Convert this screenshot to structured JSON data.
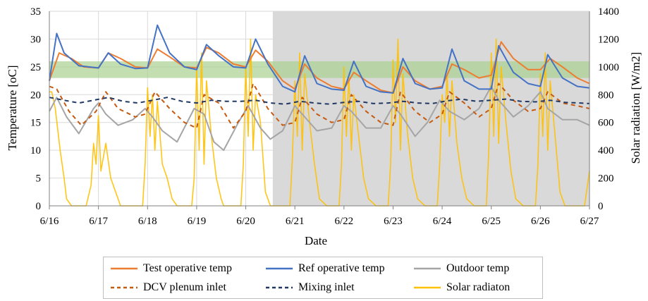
{
  "chart_data": {
    "type": "line",
    "xlabel": "Date",
    "ylabel_left": "Temperature [oC]",
    "ylabel_right": "Solar radiation [W/m2]",
    "x_ticks": [
      "6/16",
      "6/17",
      "6/18",
      "6/19",
      "6/20",
      "6/21",
      "6/22",
      "6/23",
      "6/24",
      "6/25",
      "6/26",
      "6/27"
    ],
    "ylim_left": [
      0,
      35
    ],
    "yticks_left": [
      0,
      5,
      10,
      15,
      20,
      25,
      30,
      35
    ],
    "ylim_right": [
      0,
      1400
    ],
    "yticks_right": [
      0,
      200,
      400,
      600,
      800,
      1000,
      1200,
      1400
    ],
    "grid": true,
    "shaded_period": {
      "start_day": 4.55,
      "end_day": 11,
      "color": "#d9d9d9"
    },
    "comfort_band": {
      "low": 23,
      "high": 26,
      "color": "#a9d08e"
    },
    "legend_placement": "bottom",
    "series": [
      {
        "name": "Test operative temp",
        "color": "#ed7d31",
        "style": "solid",
        "axis": "left",
        "x": [
          0,
          0.2,
          0.45,
          0.7,
          1.0,
          1.2,
          1.45,
          1.75,
          2.0,
          2.2,
          2.45,
          2.75,
          3.0,
          3.2,
          3.45,
          3.75,
          4.0,
          4.2,
          4.45,
          4.75,
          5.0,
          5.2,
          5.45,
          5.75,
          6.0,
          6.2,
          6.45,
          6.75,
          7.0,
          7.2,
          7.45,
          7.75,
          8.0,
          8.2,
          8.45,
          8.75,
          9.0,
          9.2,
          9.45,
          9.75,
          10.0,
          10.2,
          10.45,
          10.75,
          11.0
        ],
        "values": [
          22.5,
          27.5,
          26.5,
          25.0,
          24.8,
          27.5,
          26.5,
          25.0,
          24.8,
          28.2,
          26.8,
          25.0,
          24.8,
          28.5,
          27.5,
          25.5,
          25.0,
          28.0,
          26.0,
          22.5,
          21.0,
          25.5,
          23.0,
          21.5,
          21.0,
          24.0,
          22.5,
          20.8,
          20.3,
          25.0,
          22.5,
          21.0,
          21.5,
          25.5,
          24.5,
          23.0,
          23.5,
          29.5,
          26.5,
          24.5,
          24.5,
          26.5,
          25.0,
          23.0,
          22.0
        ]
      },
      {
        "name": "Ref operative temp",
        "color": "#4472c4",
        "style": "solid",
        "axis": "left",
        "x": [
          0,
          0.15,
          0.3,
          0.6,
          1.0,
          1.2,
          1.45,
          1.75,
          2.0,
          2.2,
          2.45,
          2.75,
          3.0,
          3.2,
          3.45,
          3.75,
          4.0,
          4.2,
          4.45,
          4.75,
          5.0,
          5.2,
          5.45,
          5.75,
          6.0,
          6.2,
          6.45,
          6.75,
          7.0,
          7.2,
          7.45,
          7.75,
          8.0,
          8.2,
          8.45,
          8.75,
          9.0,
          9.15,
          9.45,
          9.75,
          10.0,
          10.15,
          10.45,
          10.75,
          11.0
        ],
        "values": [
          22.5,
          31.0,
          27.5,
          25.2,
          24.8,
          27.5,
          25.5,
          24.7,
          24.8,
          32.5,
          27.5,
          25.0,
          24.5,
          29.0,
          27.0,
          25.0,
          24.8,
          30.0,
          25.5,
          21.5,
          20.5,
          27.0,
          22.0,
          21.0,
          20.8,
          26.0,
          21.5,
          20.5,
          20.3,
          26.5,
          22.0,
          21.0,
          21.2,
          28.2,
          22.5,
          21.0,
          21.0,
          28.8,
          24.0,
          22.0,
          21.5,
          27.2,
          23.0,
          21.5,
          21.2
        ]
      },
      {
        "name": "Outdoor temp",
        "color": "#a5a5a5",
        "style": "solid",
        "axis": "left",
        "x": [
          0,
          0.15,
          0.35,
          0.6,
          0.9,
          1.0,
          1.15,
          1.4,
          1.7,
          1.95,
          2.1,
          2.3,
          2.6,
          2.95,
          3.15,
          3.35,
          3.55,
          3.85,
          4.05,
          4.3,
          4.5,
          4.75,
          5.0,
          5.15,
          5.45,
          5.75,
          6.0,
          6.15,
          6.45,
          6.75,
          7.0,
          7.15,
          7.45,
          7.7,
          7.95,
          8.15,
          8.45,
          8.75,
          9.0,
          9.15,
          9.45,
          9.75,
          10.0,
          10.15,
          10.45,
          10.75,
          11.0
        ],
        "values": [
          17.0,
          19.5,
          16.0,
          13.0,
          17.5,
          18.5,
          16.5,
          14.5,
          15.5,
          17.5,
          16.0,
          13.5,
          11.5,
          17.5,
          16.5,
          11.5,
          10.0,
          15.0,
          18.0,
          14.0,
          12.0,
          13.5,
          18.0,
          16.5,
          13.5,
          14.0,
          18.0,
          17.0,
          14.0,
          14.0,
          18.0,
          16.5,
          12.5,
          15.0,
          19.0,
          17.0,
          15.5,
          17.5,
          21.5,
          19.0,
          16.0,
          18.0,
          20.5,
          17.5,
          15.5,
          15.5,
          14.5
        ]
      },
      {
        "name": "DCV plenum inlet",
        "color": "#c55a11",
        "style": "dashed",
        "axis": "left",
        "x": [
          0,
          0.15,
          0.4,
          0.65,
          0.95,
          1.15,
          1.4,
          1.75,
          1.95,
          2.15,
          2.45,
          2.75,
          3.0,
          3.15,
          3.45,
          3.75,
          4.0,
          4.15,
          4.45,
          4.75,
          5.0,
          5.15,
          5.45,
          5.75,
          6.0,
          6.15,
          6.45,
          6.75,
          7.0,
          7.15,
          7.45,
          7.75,
          8.0,
          8.15,
          8.45,
          8.75,
          9.0,
          9.15,
          9.45,
          9.75,
          10.0,
          10.15,
          10.45,
          10.75,
          11.0
        ],
        "values": [
          21.5,
          21.0,
          17.0,
          14.5,
          17.0,
          20.5,
          17.5,
          16.0,
          16.5,
          20.5,
          17.5,
          15.0,
          14.0,
          20.0,
          18.5,
          14.0,
          17.0,
          22.0,
          17.5,
          14.5,
          15.0,
          19.5,
          16.5,
          15.0,
          15.5,
          20.0,
          17.0,
          15.0,
          14.5,
          20.5,
          17.0,
          15.0,
          16.5,
          20.5,
          18.5,
          16.0,
          17.5,
          22.0,
          19.0,
          17.0,
          17.5,
          20.5,
          18.5,
          18.0,
          17.5
        ]
      },
      {
        "name": "Mixing inlet",
        "color": "#203864",
        "style": "dashed",
        "axis": "left",
        "x": [
          0,
          0.3,
          0.6,
          0.9,
          1.2,
          1.5,
          1.8,
          2.1,
          2.4,
          2.7,
          3.0,
          3.3,
          3.6,
          3.9,
          4.2,
          4.5,
          4.8,
          5.1,
          5.4,
          5.7,
          6.0,
          6.3,
          6.6,
          6.9,
          7.2,
          7.5,
          7.8,
          8.1,
          8.4,
          8.7,
          9.0,
          9.3,
          9.6,
          9.9,
          10.2,
          10.5,
          10.8,
          11.0
        ],
        "values": [
          19.5,
          19.0,
          18.5,
          19.0,
          19.5,
          18.8,
          18.5,
          19.0,
          19.5,
          18.8,
          18.5,
          19.0,
          18.8,
          18.8,
          19.0,
          18.5,
          18.3,
          18.8,
          18.5,
          18.3,
          18.6,
          18.8,
          18.4,
          18.5,
          18.8,
          18.5,
          18.4,
          18.9,
          19.2,
          18.8,
          19.0,
          19.2,
          18.8,
          18.7,
          19.0,
          18.6,
          18.5,
          18.4
        ]
      },
      {
        "name": "Solar radiaton",
        "color": "#ffc000",
        "style": "solid",
        "axis": "right",
        "x": [
          0,
          0.05,
          0.12,
          0.22,
          0.3,
          0.35,
          0.45,
          0.75,
          0.85,
          0.9,
          0.95,
          1.0,
          1.05,
          1.15,
          1.25,
          1.35,
          1.45,
          1.5,
          1.6,
          1.9,
          1.95,
          2.0,
          2.05,
          2.1,
          2.15,
          2.2,
          2.3,
          2.4,
          2.5,
          2.6,
          2.9,
          2.95,
          3.0,
          3.05,
          3.1,
          3.15,
          3.2,
          3.3,
          3.4,
          3.5,
          3.55,
          3.65,
          3.9,
          3.95,
          4.0,
          4.05,
          4.1,
          4.15,
          4.2,
          4.3,
          4.4,
          4.5,
          4.65,
          4.9,
          4.95,
          5.0,
          5.05,
          5.1,
          5.15,
          5.2,
          5.3,
          5.4,
          5.5,
          5.65,
          5.9,
          5.95,
          6.0,
          6.05,
          6.1,
          6.15,
          6.2,
          6.3,
          6.4,
          6.5,
          6.65,
          6.9,
          6.95,
          7.0,
          7.05,
          7.1,
          7.15,
          7.2,
          7.3,
          7.4,
          7.5,
          7.65,
          7.9,
          7.95,
          8.0,
          8.05,
          8.1,
          8.15,
          8.2,
          8.3,
          8.4,
          8.5,
          8.65,
          8.9,
          8.95,
          9.0,
          9.05,
          9.1,
          9.15,
          9.2,
          9.3,
          9.4,
          9.5,
          9.65,
          9.9,
          9.95,
          10.0,
          10.05,
          10.1,
          10.15,
          10.2,
          10.3,
          10.4,
          10.5,
          10.65,
          10.9,
          11.0
        ],
        "values": [
          820,
          820,
          700,
          400,
          200,
          50,
          0,
          0,
          150,
          450,
          300,
          650,
          250,
          450,
          200,
          100,
          0,
          0,
          0,
          0,
          300,
          850,
          500,
          800,
          400,
          750,
          300,
          200,
          50,
          0,
          0,
          200,
          1000,
          400,
          1100,
          300,
          900,
          500,
          200,
          50,
          0,
          0,
          0,
          300,
          1000,
          500,
          1200,
          400,
          800,
          600,
          100,
          0,
          0,
          0,
          350,
          900,
          500,
          1100,
          400,
          950,
          600,
          300,
          50,
          0,
          0,
          300,
          1000,
          500,
          950,
          400,
          800,
          500,
          200,
          50,
          0,
          0,
          300,
          1050,
          600,
          1200,
          400,
          950,
          500,
          200,
          50,
          0,
          0,
          300,
          800,
          600,
          950,
          500,
          900,
          450,
          200,
          50,
          0,
          0,
          400,
          1100,
          500,
          1200,
          450,
          1000,
          600,
          250,
          50,
          0,
          0,
          300,
          950,
          500,
          1100,
          400,
          900,
          500,
          100,
          0,
          0,
          0,
          250
        ]
      }
    ]
  }
}
